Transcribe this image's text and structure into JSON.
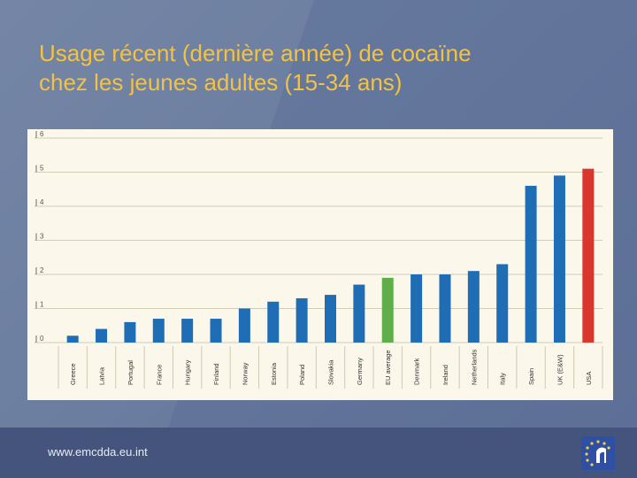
{
  "slide": {
    "title_line1": "Usage récent (dernière année) de cocaïne",
    "title_line2": "chez les jeunes adultes (15-34 ans)",
    "footer_url": "www.emcdda.eu.int"
  },
  "colors": {
    "background": "#6d7fa1",
    "title": "#f2c244",
    "bar_default": "#1f6db5",
    "bar_eu_average": "#5fae4a",
    "bar_usa": "#d9372e",
    "footer": "#45547d"
  },
  "chart_data": {
    "type": "bar",
    "title": "",
    "xlabel": "",
    "ylabel": "",
    "ylim": [
      0,
      6
    ],
    "yticks": [
      "0",
      "1",
      "2",
      "3",
      "4",
      "5",
      "6"
    ],
    "categories": [
      "Greece",
      "Latvia",
      "Portugal",
      "France",
      "Hungary",
      "Finland",
      "Norway",
      "Estonia",
      "Poland",
      "Slovakia",
      "Germany",
      "EU average",
      "Denmark",
      "Ireland",
      "Netherlands",
      "Italy",
      "Spain",
      "UK (E&W)",
      "USA"
    ],
    "values": [
      0.2,
      0.4,
      0.6,
      0.7,
      0.7,
      0.7,
      1.0,
      1.2,
      1.3,
      1.4,
      1.7,
      1.9,
      2.0,
      2.0,
      2.1,
      2.3,
      4.6,
      4.9,
      5.1
    ],
    "highlight": {
      "EU average": "#5fae4a",
      "USA": "#d9372e"
    },
    "grid": true
  }
}
